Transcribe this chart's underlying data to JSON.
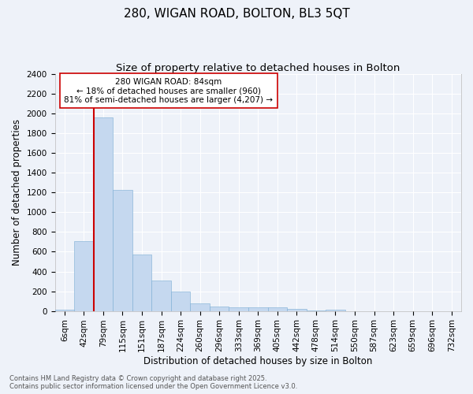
{
  "title": "280, WIGAN ROAD, BOLTON, BL3 5QT",
  "subtitle": "Size of property relative to detached houses in Bolton",
  "xlabel": "Distribution of detached houses by size in Bolton",
  "ylabel": "Number of detached properties",
  "categories": [
    "6sqm",
    "42sqm",
    "79sqm",
    "115sqm",
    "151sqm",
    "187sqm",
    "224sqm",
    "260sqm",
    "296sqm",
    "333sqm",
    "369sqm",
    "405sqm",
    "442sqm",
    "478sqm",
    "514sqm",
    "550sqm",
    "587sqm",
    "623sqm",
    "659sqm",
    "696sqm",
    "732sqm"
  ],
  "values": [
    15,
    710,
    1960,
    1230,
    570,
    305,
    200,
    80,
    45,
    35,
    35,
    35,
    20,
    5,
    15,
    0,
    0,
    0,
    0,
    0,
    0
  ],
  "highlighted_bin": 2,
  "bar_color": "#c5d8ef",
  "bar_edge_color": "#7aadd4",
  "highlight_edge_color": "#cc0000",
  "ylim": [
    0,
    2400
  ],
  "yticks": [
    0,
    200,
    400,
    600,
    800,
    1000,
    1200,
    1400,
    1600,
    1800,
    2000,
    2200,
    2400
  ],
  "annotation_text": "280 WIGAN ROAD: 84sqm\n← 18% of detached houses are smaller (960)\n81% of semi-detached houses are larger (4,207) →",
  "annotation_box_color": "#ffffff",
  "annotation_box_edge": "#cc0000",
  "footer_text": "Contains HM Land Registry data © Crown copyright and database right 2025.\nContains public sector information licensed under the Open Government Licence v3.0.",
  "bg_color": "#eef2f9",
  "grid_color": "#ffffff",
  "title_fontsize": 11,
  "subtitle_fontsize": 9.5,
  "axis_label_fontsize": 8.5,
  "tick_fontsize": 7.5,
  "footer_fontsize": 6,
  "annotation_fontsize": 7.5
}
